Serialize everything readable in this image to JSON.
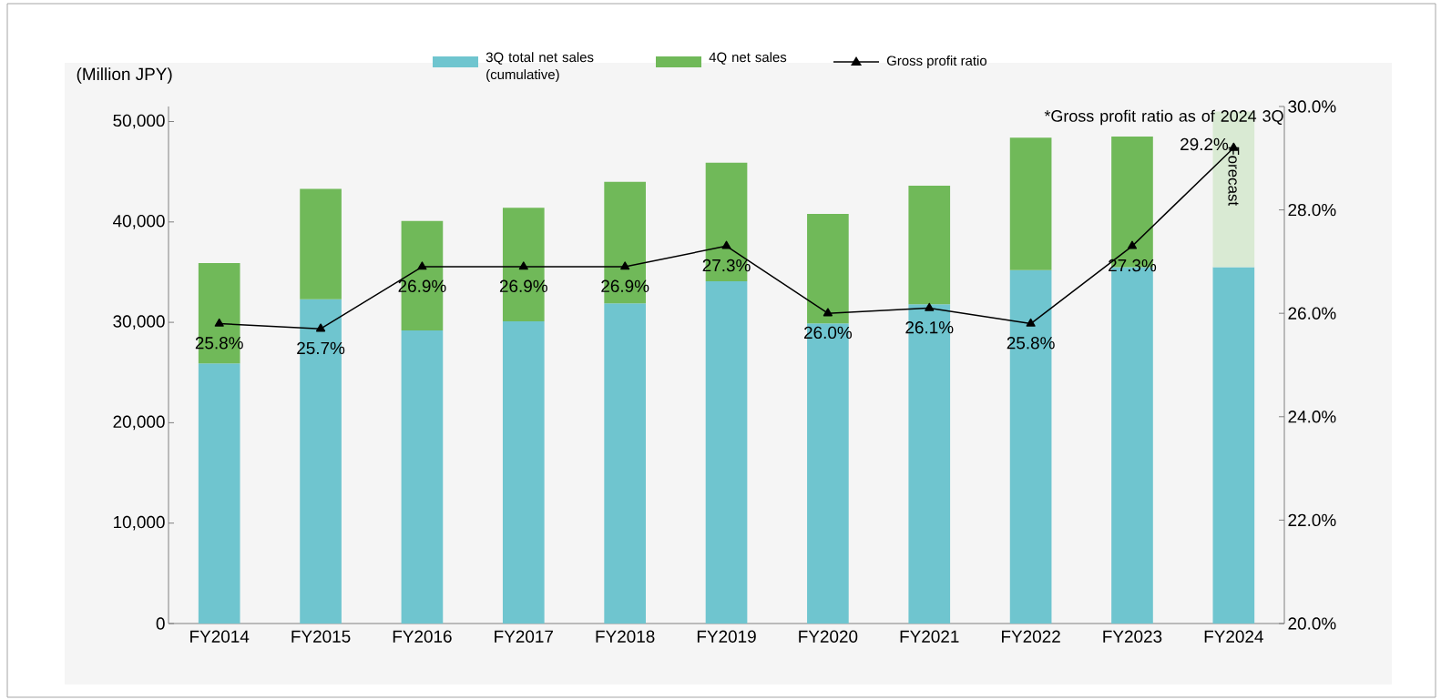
{
  "chart_data": {
    "type": "bar",
    "stacked": true,
    "ylabel": "(Million JPY)",
    "categories": [
      "FY2014",
      "FY2015",
      "FY2016",
      "FY2017",
      "FY2018",
      "FY2019",
      "FY2020",
      "FY2021",
      "FY2022",
      "FY2023",
      "FY2024"
    ],
    "series": [
      {
        "name": "3Q total net sales (cumulative)",
        "color": "#6fc5cf",
        "values": [
          25900,
          32300,
          29200,
          30100,
          31900,
          34100,
          29900,
          31800,
          35200,
          35500,
          35500
        ]
      },
      {
        "name": "4Q net sales",
        "color": "#70b959",
        "colors": [
          "#70b959",
          "#70b959",
          "#70b959",
          "#70b959",
          "#70b959",
          "#70b959",
          "#70b959",
          "#70b959",
          "#70b959",
          "#70b959",
          "#d9ead3"
        ],
        "values": [
          10000,
          11000,
          10900,
          11300,
          12100,
          11800,
          10900,
          11800,
          13200,
          13000,
          15500
        ]
      },
      {
        "name": "Gross profit ratio",
        "type": "line",
        "axis": "y2",
        "color": "#000000",
        "marker": "triangle",
        "values": [
          25.8,
          25.7,
          26.9,
          26.9,
          26.9,
          27.3,
          26.0,
          26.1,
          25.8,
          27.3,
          29.2
        ],
        "value_labels": [
          "25.8%",
          "25.7%",
          "26.9%",
          "26.9%",
          "26.9%",
          "27.3%",
          "26.0%",
          "26.1%",
          "25.8%",
          "27.3%",
          "29.2%"
        ]
      }
    ],
    "ylim": [
      0,
      51500
    ],
    "yticks": [
      0,
      {
        "value": 10000,
        "label": "10,000"
      },
      {
        "value": 20000,
        "label": "20,000"
      },
      {
        "value": 30000,
        "label": "30,000"
      },
      {
        "value": 40000,
        "label": "40,000"
      },
      {
        "value": 50000,
        "label": "50,000"
      }
    ],
    "y2lim": [
      20,
      30
    ],
    "y2ticks": [
      {
        "value": 20,
        "label": "20.0%"
      },
      {
        "value": 22,
        "label": "22.0%"
      },
      {
        "value": 24,
        "label": "24.0%"
      },
      {
        "value": 26,
        "label": "26.0%"
      },
      {
        "value": 28,
        "label": "28.0%"
      },
      {
        "value": 30,
        "label": "30.0%"
      }
    ],
    "legend": "top",
    "annotations": [
      "Forecast",
      "*Gross profit ratio as of 2024 3Q"
    ]
  }
}
